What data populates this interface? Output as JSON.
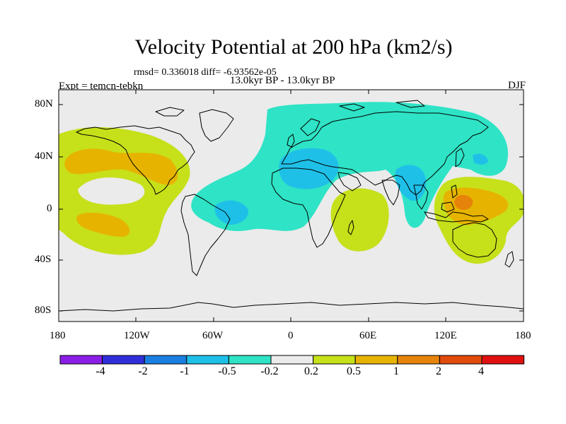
{
  "header": {
    "title": "Velocity Potential at 200 hPa (km2/s)",
    "stats": "rmsd= 0.336018 diff= -6.93562e-05",
    "experiment": "Expt = temcn-tebkn",
    "period": "13.0kyr BP - 13.0kyr BP",
    "season": "DJF"
  },
  "axes": {
    "y_ticks": [
      "80N",
      "40N",
      "0",
      "40S",
      "80S"
    ],
    "x_ticks": [
      "180",
      "120W",
      "60W",
      "0",
      "60E",
      "120E",
      "180"
    ]
  },
  "colorbar": {
    "labels": [
      "-4",
      "-2",
      "-1",
      "-0.5",
      "-0.2",
      "0.2",
      "0.5",
      "1",
      "2",
      "4"
    ],
    "colors": [
      "#8a1ee6",
      "#2f2fd9",
      "#1a7fe0",
      "#1fc0e8",
      "#2fe3c6",
      "#ebebeb",
      "#c6e01a",
      "#e6b400",
      "#e6830a",
      "#e04a0a",
      "#e01010"
    ]
  },
  "map": {
    "background": "#ebebeb",
    "regions": [
      {
        "name": "north-pacific-positive",
        "level": "0.2 to 0.5"
      },
      {
        "name": "north-pacific-core",
        "level": "0.5 to 1"
      },
      {
        "name": "south-pacific-core",
        "level": "0.5 to 1"
      },
      {
        "name": "eurasia-atlantic-negative",
        "level": "-0.5 to -0.2"
      },
      {
        "name": "africa-indian-core",
        "level": "-1 to -0.5"
      },
      {
        "name": "southern-africa-positive",
        "level": "0.2 to 0.5"
      },
      {
        "name": "maritime-continent-positive",
        "level": "0.5 to 1"
      },
      {
        "name": "maritime-continent-core",
        "level": "1 to 2"
      }
    ]
  }
}
